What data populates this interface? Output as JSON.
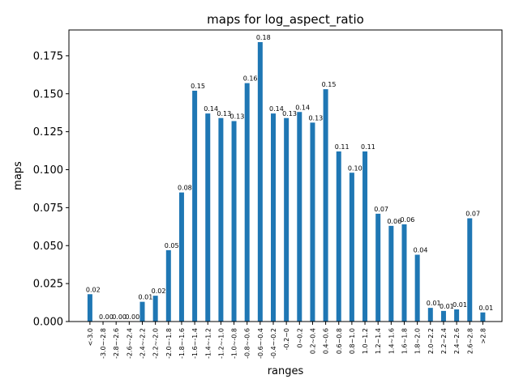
{
  "chart_data": {
    "type": "bar",
    "title": "maps for log_aspect_ratio",
    "xlabel": "ranges",
    "ylabel": "maps",
    "ylim": [
      0,
      0.192
    ],
    "yticks": [
      "0.000",
      "0.025",
      "0.050",
      "0.075",
      "0.100",
      "0.125",
      "0.150",
      "0.175"
    ],
    "ytick_values": [
      0,
      0.025,
      0.05,
      0.075,
      0.1,
      0.125,
      0.15,
      0.175
    ],
    "grid": false,
    "bar_color": "#1f77b4",
    "categories": [
      "<-3.0",
      "-3.0~-2.8",
      "-2.8~-2.6",
      "-2.6~-2.4",
      "-2.4~-2.2",
      "-2.2~-2.0",
      "-2.0~-1.8",
      "-1.8~-1.6",
      "-1.6~-1.4",
      "-1.4~-1.2",
      "-1.2~-1.0",
      "-1.0~-0.8",
      "-0.8~-0.6",
      "-0.6~-0.4",
      "-0.4~-0.2",
      "-0.2~0",
      "0~0.2",
      "0.2~0.4",
      "0.4~0.6",
      "0.6~0.8",
      "0.8~1.0",
      "1.0~1.2",
      "1.2~1.4",
      "1.4~1.6",
      "1.6~1.8",
      "1.8~2.0",
      "2.0~2.2",
      "2.2~2.4",
      "2.4~2.6",
      "2.6~2.8",
      ">2.8"
    ],
    "values": [
      0.018,
      0.0,
      0.0,
      0.0,
      0.013,
      0.017,
      0.047,
      0.085,
      0.152,
      0.137,
      0.134,
      0.132,
      0.157,
      0.184,
      0.137,
      0.134,
      0.138,
      0.131,
      0.153,
      0.112,
      0.098,
      0.112,
      0.071,
      0.063,
      0.064,
      0.044,
      0.009,
      0.007,
      0.008,
      0.068,
      0.006
    ],
    "data_labels": [
      "0.02",
      "0.00",
      "0.00",
      "0.00",
      "0.01",
      "0.02",
      "0.05",
      "0.08",
      "0.15",
      "0.14",
      "0.13",
      "0.13",
      "0.16",
      "0.18",
      "0.14",
      "0.13",
      "0.14",
      "0.13",
      "0.15",
      "0.11",
      "0.10",
      "0.11",
      "0.07",
      "0.06",
      "0.06",
      "0.04",
      "0.01",
      "0.01",
      "0.01",
      "0.07",
      "0.01"
    ]
  }
}
